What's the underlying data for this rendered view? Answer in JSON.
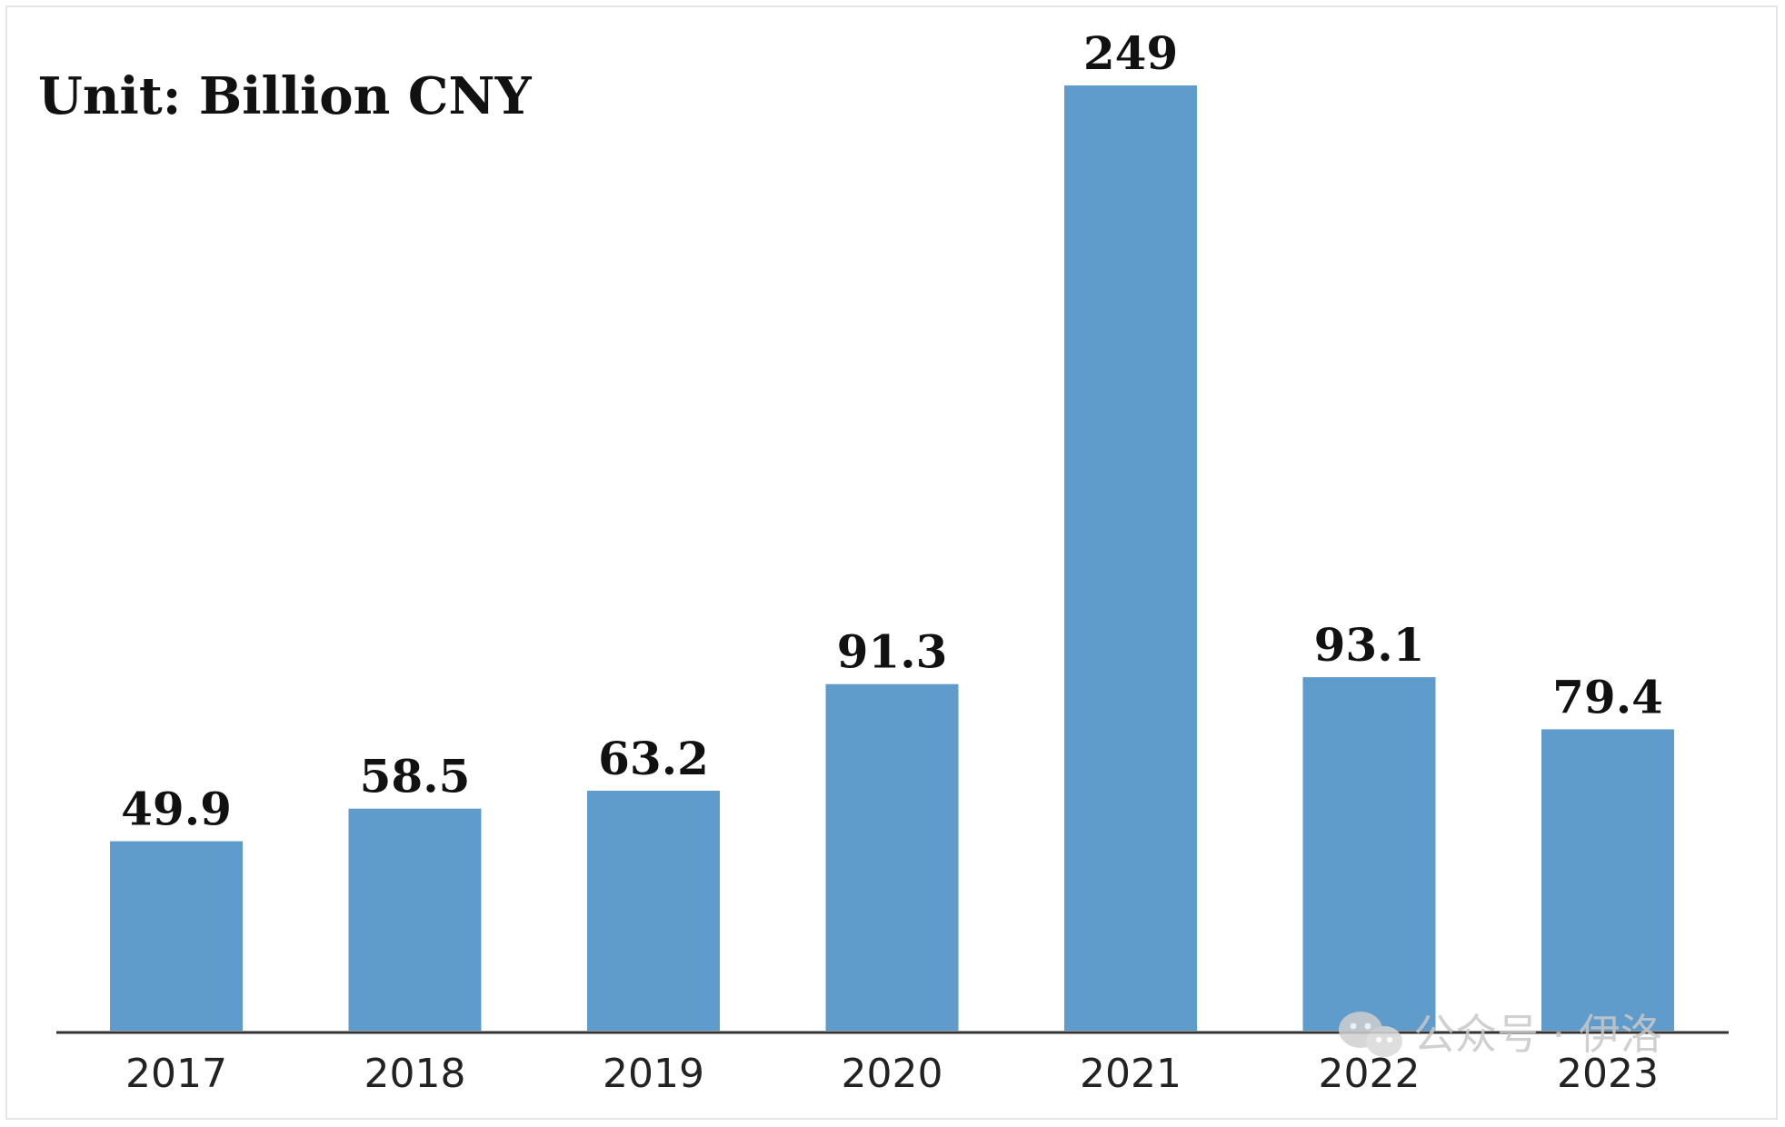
{
  "chart_data": {
    "type": "bar",
    "title": "",
    "unit_label": "Unit:  Billion CNY",
    "categories": [
      "2017",
      "2018",
      "2019",
      "2020",
      "2021",
      "2022",
      "2023"
    ],
    "values": [
      49.9,
      58.5,
      63.2,
      91.3,
      249,
      93.1,
      79.4
    ],
    "value_labels": [
      "49.9",
      "58.5",
      "63.2",
      "91.3",
      "249",
      "93.1",
      "79.4"
    ],
    "xlabel": "",
    "ylabel": "",
    "ylim": [
      0,
      249
    ],
    "grid": false,
    "legend": "none",
    "bar_color": "#5f9bcb",
    "axis_color": "#333333"
  },
  "watermark": {
    "icon": "wechat-icon",
    "text": "公众号 · 伊洛"
  }
}
